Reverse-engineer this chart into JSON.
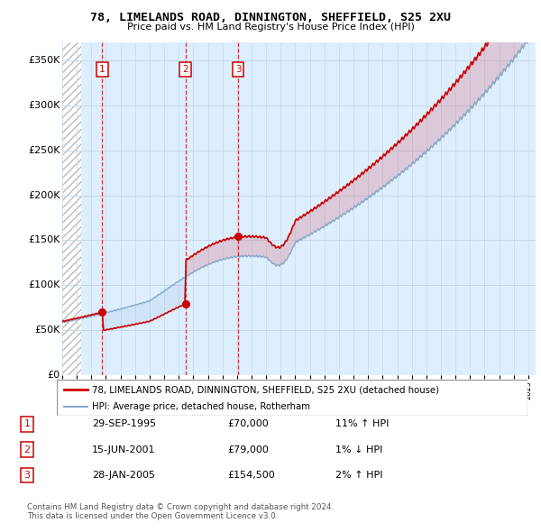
{
  "title1": "78, LIMELANDS ROAD, DINNINGTON, SHEFFIELD, S25 2XU",
  "title2": "Price paid vs. HM Land Registry's House Price Index (HPI)",
  "ylim": [
    0,
    370000
  ],
  "yticks": [
    0,
    50000,
    100000,
    150000,
    200000,
    250000,
    300000,
    350000
  ],
  "ytick_labels": [
    "£0",
    "£50K",
    "£100K",
    "£150K",
    "£200K",
    "£250K",
    "£300K",
    "£350K"
  ],
  "sale_dates_num": [
    1995.75,
    2001.46,
    2005.08
  ],
  "sale_prices": [
    70000,
    79000,
    154500
  ],
  "sale_labels": [
    "1",
    "2",
    "3"
  ],
  "legend_line1": "78, LIMELANDS ROAD, DINNINGTON, SHEFFIELD, S25 2XU (detached house)",
  "legend_line2": "HPI: Average price, detached house, Rotherham",
  "table_rows": [
    [
      "1",
      "29-SEP-1995",
      "£70,000",
      "11% ↑ HPI"
    ],
    [
      "2",
      "15-JUN-2001",
      "£79,000",
      "1% ↓ HPI"
    ],
    [
      "3",
      "28-JAN-2005",
      "£154,500",
      "2% ↑ HPI"
    ]
  ],
  "footnote1": "Contains HM Land Registry data © Crown copyright and database right 2024.",
  "footnote2": "This data is licensed under the Open Government Licence v3.0.",
  "red_color": "#cc0000",
  "blue_color": "#88aacc",
  "grid_color": "#c8d8e8",
  "bg_color": "#ddeeff",
  "xmin": 1993.0,
  "xmax": 2025.5
}
